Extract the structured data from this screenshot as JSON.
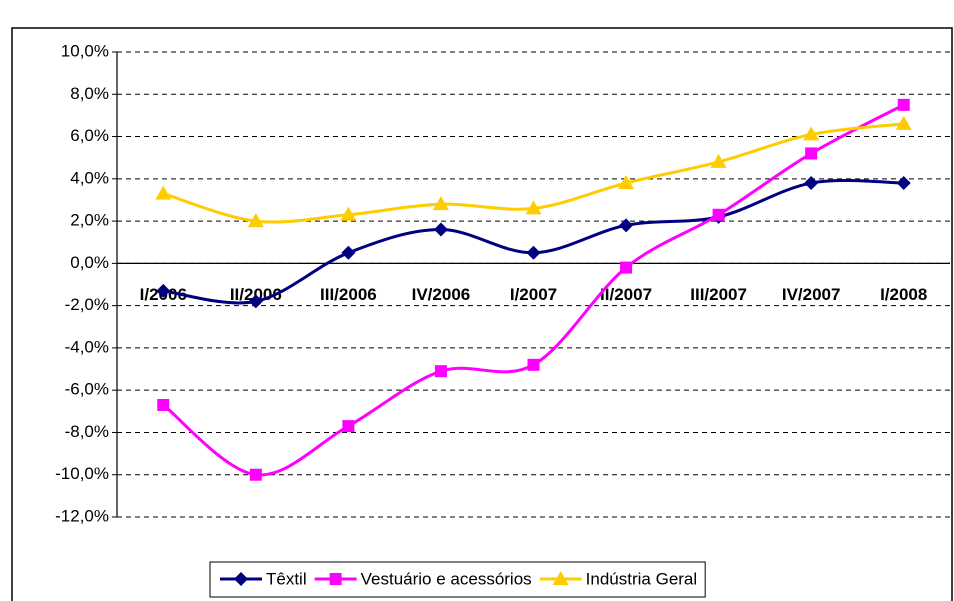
{
  "chart_data": {
    "type": "line",
    "categories": [
      "I/2006",
      "II/2006",
      "III/2006",
      "IV/2006",
      "I/2007",
      "II/2007",
      "III/2007",
      "IV/2007",
      "I/2008"
    ],
    "series": [
      {
        "name": "Têxtil",
        "color": "#000080",
        "marker": "diamond",
        "values": [
          -1.3,
          -1.8,
          0.5,
          1.6,
          0.5,
          1.8,
          2.2,
          3.8,
          3.8
        ]
      },
      {
        "name": "Vestuário e acessórios",
        "color": "#ff00ff",
        "marker": "square",
        "values": [
          -6.7,
          -10.0,
          -7.7,
          -5.1,
          -4.8,
          -0.2,
          2.3,
          5.2,
          7.5
        ]
      },
      {
        "name": "Indústria Geral",
        "color": "#ffcc00",
        "marker": "triangle",
        "values": [
          3.3,
          2.0,
          2.3,
          2.8,
          2.6,
          3.8,
          4.8,
          6.1,
          6.6
        ]
      }
    ],
    "ylim": [
      -12,
      10
    ],
    "yticks": [
      {
        "value": -12,
        "label": "-12,0%"
      },
      {
        "value": -10,
        "label": "-10,0%"
      },
      {
        "value": -8,
        "label": "-8,0%"
      },
      {
        "value": -6,
        "label": "-6,0%"
      },
      {
        "value": -4,
        "label": "-4,0%"
      },
      {
        "value": -2,
        "label": "-2,0%"
      },
      {
        "value": 0,
        "label": "0,0%"
      },
      {
        "value": 2,
        "label": "2,0%"
      },
      {
        "value": 4,
        "label": "4,0%"
      },
      {
        "value": 6,
        "label": "6,0%"
      },
      {
        "value": 8,
        "label": "8,0%"
      },
      {
        "value": 10,
        "label": "10,0%"
      }
    ],
    "grid": true,
    "legend": "bottom"
  }
}
